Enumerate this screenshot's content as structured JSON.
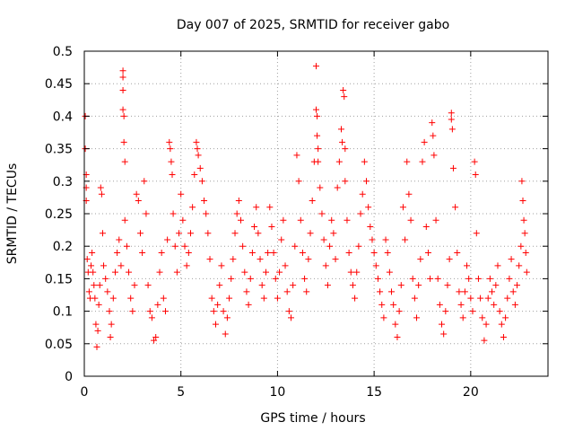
{
  "chart_data": {
    "type": "scatter",
    "title": "Day 007 of 2025, SRMTID for receiver gabo",
    "xlabel": "GPS time / hours",
    "ylabel": "SRMTID / TECUs",
    "xlim": [
      0,
      24
    ],
    "ylim": [
      0,
      0.5
    ],
    "xticks": [
      0,
      5,
      10,
      15,
      20
    ],
    "yticks": [
      0,
      0.05,
      0.1,
      0.15,
      0.2,
      0.25,
      0.3,
      0.35,
      0.4,
      0.45,
      0.5
    ],
    "grid": true,
    "marker": "+",
    "series": [
      {
        "name": "SRMTID",
        "color": "#ff0000",
        "points": [
          [
            0.05,
            0.4
          ],
          [
            0.05,
            0.35
          ],
          [
            0.1,
            0.31
          ],
          [
            0.1,
            0.29
          ],
          [
            0.1,
            0.27
          ],
          [
            0.15,
            0.18
          ],
          [
            0.2,
            0.16
          ],
          [
            0.25,
            0.13
          ],
          [
            0.3,
            0.12
          ],
          [
            0.35,
            0.17
          ],
          [
            0.4,
            0.19
          ],
          [
            0.45,
            0.16
          ],
          [
            0.5,
            0.14
          ],
          [
            0.55,
            0.12
          ],
          [
            0.6,
            0.08
          ],
          [
            0.65,
            0.045
          ],
          [
            0.7,
            0.07
          ],
          [
            0.75,
            0.11
          ],
          [
            0.8,
            0.14
          ],
          [
            0.85,
            0.29
          ],
          [
            0.9,
            0.28
          ],
          [
            0.95,
            0.22
          ],
          [
            1.0,
            0.17
          ],
          [
            1.1,
            0.15
          ],
          [
            1.2,
            0.13
          ],
          [
            1.3,
            0.1
          ],
          [
            1.35,
            0.06
          ],
          [
            1.4,
            0.08
          ],
          [
            1.5,
            0.12
          ],
          [
            1.6,
            0.16
          ],
          [
            1.7,
            0.19
          ],
          [
            1.8,
            0.21
          ],
          [
            1.9,
            0.17
          ],
          [
            2.0,
            0.47
          ],
          [
            2.0,
            0.46
          ],
          [
            2.0,
            0.44
          ],
          [
            2.0,
            0.41
          ],
          [
            2.05,
            0.4
          ],
          [
            2.05,
            0.36
          ],
          [
            2.1,
            0.33
          ],
          [
            2.1,
            0.24
          ],
          [
            2.2,
            0.2
          ],
          [
            2.3,
            0.16
          ],
          [
            2.4,
            0.12
          ],
          [
            2.5,
            0.1
          ],
          [
            2.6,
            0.14
          ],
          [
            2.7,
            0.28
          ],
          [
            2.8,
            0.27
          ],
          [
            2.9,
            0.22
          ],
          [
            3.0,
            0.19
          ],
          [
            3.1,
            0.3
          ],
          [
            3.2,
            0.25
          ],
          [
            3.3,
            0.14
          ],
          [
            3.4,
            0.1
          ],
          [
            3.5,
            0.09
          ],
          [
            3.6,
            0.055
          ],
          [
            3.7,
            0.06
          ],
          [
            3.8,
            0.11
          ],
          [
            3.9,
            0.16
          ],
          [
            4.0,
            0.19
          ],
          [
            4.1,
            0.12
          ],
          [
            4.2,
            0.1
          ],
          [
            4.3,
            0.21
          ],
          [
            4.4,
            0.36
          ],
          [
            4.45,
            0.35
          ],
          [
            4.5,
            0.33
          ],
          [
            4.55,
            0.31
          ],
          [
            4.6,
            0.25
          ],
          [
            4.7,
            0.2
          ],
          [
            4.8,
            0.16
          ],
          [
            4.9,
            0.22
          ],
          [
            5.0,
            0.28
          ],
          [
            5.1,
            0.24
          ],
          [
            5.2,
            0.2
          ],
          [
            5.3,
            0.17
          ],
          [
            5.4,
            0.19
          ],
          [
            5.5,
            0.22
          ],
          [
            5.6,
            0.26
          ],
          [
            5.7,
            0.31
          ],
          [
            5.8,
            0.36
          ],
          [
            5.85,
            0.35
          ],
          [
            5.9,
            0.34
          ],
          [
            6.0,
            0.32
          ],
          [
            6.1,
            0.3
          ],
          [
            6.2,
            0.27
          ],
          [
            6.3,
            0.25
          ],
          [
            6.4,
            0.22
          ],
          [
            6.5,
            0.18
          ],
          [
            6.6,
            0.12
          ],
          [
            6.7,
            0.1
          ],
          [
            6.8,
            0.08
          ],
          [
            6.9,
            0.11
          ],
          [
            7.0,
            0.14
          ],
          [
            7.1,
            0.17
          ],
          [
            7.2,
            0.1
          ],
          [
            7.3,
            0.065
          ],
          [
            7.4,
            0.09
          ],
          [
            7.5,
            0.12
          ],
          [
            7.6,
            0.15
          ],
          [
            7.7,
            0.18
          ],
          [
            7.8,
            0.22
          ],
          [
            7.9,
            0.25
          ],
          [
            8.0,
            0.27
          ],
          [
            8.1,
            0.24
          ],
          [
            8.2,
            0.2
          ],
          [
            8.3,
            0.16
          ],
          [
            8.4,
            0.13
          ],
          [
            8.5,
            0.11
          ],
          [
            8.6,
            0.15
          ],
          [
            8.7,
            0.19
          ],
          [
            8.8,
            0.23
          ],
          [
            8.9,
            0.26
          ],
          [
            9.0,
            0.22
          ],
          [
            9.1,
            0.18
          ],
          [
            9.2,
            0.14
          ],
          [
            9.3,
            0.12
          ],
          [
            9.4,
            0.16
          ],
          [
            9.5,
            0.19
          ],
          [
            9.6,
            0.26
          ],
          [
            9.7,
            0.23
          ],
          [
            9.8,
            0.19
          ],
          [
            9.9,
            0.15
          ],
          [
            10.0,
            0.12
          ],
          [
            10.1,
            0.16
          ],
          [
            10.2,
            0.21
          ],
          [
            10.3,
            0.24
          ],
          [
            10.4,
            0.17
          ],
          [
            10.5,
            0.13
          ],
          [
            10.6,
            0.1
          ],
          [
            10.7,
            0.09
          ],
          [
            10.8,
            0.14
          ],
          [
            10.9,
            0.2
          ],
          [
            11.0,
            0.34
          ],
          [
            11.1,
            0.3
          ],
          [
            11.2,
            0.24
          ],
          [
            11.3,
            0.19
          ],
          [
            11.4,
            0.15
          ],
          [
            11.5,
            0.13
          ],
          [
            11.6,
            0.18
          ],
          [
            11.7,
            0.22
          ],
          [
            11.8,
            0.27
          ],
          [
            11.9,
            0.33
          ],
          [
            12.0,
            0.477
          ],
          [
            12.0,
            0.41
          ],
          [
            12.05,
            0.4
          ],
          [
            12.05,
            0.37
          ],
          [
            12.1,
            0.35
          ],
          [
            12.1,
            0.33
          ],
          [
            12.2,
            0.29
          ],
          [
            12.3,
            0.25
          ],
          [
            12.4,
            0.21
          ],
          [
            12.5,
            0.17
          ],
          [
            12.6,
            0.14
          ],
          [
            12.7,
            0.2
          ],
          [
            12.8,
            0.24
          ],
          [
            12.9,
            0.22
          ],
          [
            13.0,
            0.18
          ],
          [
            13.1,
            0.29
          ],
          [
            13.2,
            0.33
          ],
          [
            13.3,
            0.38
          ],
          [
            13.35,
            0.36
          ],
          [
            13.4,
            0.44
          ],
          [
            13.45,
            0.43
          ],
          [
            13.5,
            0.35
          ],
          [
            13.5,
            0.3
          ],
          [
            13.6,
            0.24
          ],
          [
            13.7,
            0.19
          ],
          [
            13.8,
            0.16
          ],
          [
            13.9,
            0.14
          ],
          [
            14.0,
            0.12
          ],
          [
            14.1,
            0.16
          ],
          [
            14.2,
            0.2
          ],
          [
            14.3,
            0.25
          ],
          [
            14.4,
            0.28
          ],
          [
            14.5,
            0.33
          ],
          [
            14.6,
            0.3
          ],
          [
            14.7,
            0.26
          ],
          [
            14.8,
            0.23
          ],
          [
            14.9,
            0.21
          ],
          [
            15.0,
            0.19
          ],
          [
            15.1,
            0.17
          ],
          [
            15.2,
            0.15
          ],
          [
            15.3,
            0.13
          ],
          [
            15.4,
            0.11
          ],
          [
            15.5,
            0.09
          ],
          [
            15.6,
            0.21
          ],
          [
            15.7,
            0.19
          ],
          [
            15.8,
            0.16
          ],
          [
            15.9,
            0.13
          ],
          [
            16.0,
            0.11
          ],
          [
            16.1,
            0.08
          ],
          [
            16.2,
            0.06
          ],
          [
            16.3,
            0.1
          ],
          [
            16.4,
            0.14
          ],
          [
            16.5,
            0.26
          ],
          [
            16.6,
            0.21
          ],
          [
            16.7,
            0.33
          ],
          [
            16.8,
            0.28
          ],
          [
            16.9,
            0.24
          ],
          [
            17.0,
            0.15
          ],
          [
            17.1,
            0.12
          ],
          [
            17.2,
            0.09
          ],
          [
            17.3,
            0.14
          ],
          [
            17.4,
            0.18
          ],
          [
            17.5,
            0.33
          ],
          [
            17.6,
            0.36
          ],
          [
            17.7,
            0.23
          ],
          [
            17.8,
            0.19
          ],
          [
            17.9,
            0.15
          ],
          [
            18.0,
            0.39
          ],
          [
            18.05,
            0.37
          ],
          [
            18.1,
            0.34
          ],
          [
            18.2,
            0.24
          ],
          [
            18.3,
            0.15
          ],
          [
            18.4,
            0.11
          ],
          [
            18.5,
            0.08
          ],
          [
            18.6,
            0.065
          ],
          [
            18.7,
            0.1
          ],
          [
            18.8,
            0.14
          ],
          [
            18.9,
            0.18
          ],
          [
            19.0,
            0.405
          ],
          [
            19.0,
            0.395
          ],
          [
            19.05,
            0.38
          ],
          [
            19.1,
            0.32
          ],
          [
            19.2,
            0.26
          ],
          [
            19.3,
            0.19
          ],
          [
            19.4,
            0.13
          ],
          [
            19.5,
            0.11
          ],
          [
            19.6,
            0.09
          ],
          [
            19.7,
            0.13
          ],
          [
            19.8,
            0.17
          ],
          [
            19.9,
            0.15
          ],
          [
            20.0,
            0.12
          ],
          [
            20.1,
            0.1
          ],
          [
            20.2,
            0.33
          ],
          [
            20.25,
            0.31
          ],
          [
            20.3,
            0.22
          ],
          [
            20.4,
            0.15
          ],
          [
            20.5,
            0.12
          ],
          [
            20.6,
            0.09
          ],
          [
            20.7,
            0.055
          ],
          [
            20.8,
            0.08
          ],
          [
            20.9,
            0.12
          ],
          [
            21.0,
            0.15
          ],
          [
            21.1,
            0.13
          ],
          [
            21.2,
            0.11
          ],
          [
            21.3,
            0.14
          ],
          [
            21.4,
            0.17
          ],
          [
            21.5,
            0.1
          ],
          [
            21.6,
            0.08
          ],
          [
            21.7,
            0.06
          ],
          [
            21.8,
            0.09
          ],
          [
            21.9,
            0.12
          ],
          [
            22.0,
            0.15
          ],
          [
            22.1,
            0.18
          ],
          [
            22.2,
            0.13
          ],
          [
            22.3,
            0.11
          ],
          [
            22.4,
            0.14
          ],
          [
            22.5,
            0.17
          ],
          [
            22.6,
            0.2
          ],
          [
            22.65,
            0.3
          ],
          [
            22.7,
            0.27
          ],
          [
            22.75,
            0.24
          ],
          [
            22.8,
            0.22
          ],
          [
            22.85,
            0.19
          ],
          [
            22.9,
            0.16
          ]
        ]
      }
    ]
  }
}
